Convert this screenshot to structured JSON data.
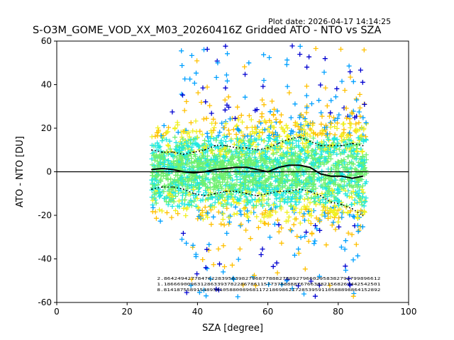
{
  "header": {
    "plot_date": "Plot date: 2026-04-17 14:14:25",
    "title": "S-O3M_GOME_VOD_XX_M03_20260416Z Gridded ATO - NTO vs SZA"
  },
  "chart_data": {
    "type": "scatter",
    "title": "S-O3M_GOME_VOD_XX_M03_20260416Z Gridded ATO - NTO vs SZA",
    "xlabel": "SZA [degree]",
    "ylabel": "ATO - NTO [DU]",
    "xlim": [
      0,
      100
    ],
    "ylim": [
      -60,
      60
    ],
    "xticks": [
      0,
      20,
      40,
      60,
      80,
      100
    ],
    "yticks": [
      -60,
      -40,
      -20,
      0,
      20,
      40,
      60
    ],
    "zero_line": 0,
    "marker": "+",
    "point_colors": [
      "#0000d0",
      "#00a0ff",
      "#20e8e0",
      "#70f070",
      "#f0f020",
      "#ffc000"
    ],
    "scatter_x_range": [
      27,
      88
    ],
    "median_series": {
      "name": "median",
      "x": [
        27,
        30,
        33,
        36,
        39,
        42,
        45,
        48,
        51,
        54,
        57,
        60,
        63,
        66,
        69,
        72,
        75,
        78,
        81,
        84,
        87
      ],
      "y": [
        1,
        1.5,
        1,
        0,
        -0.5,
        0,
        1,
        1.5,
        2,
        2,
        1,
        0,
        2,
        3,
        3,
        2,
        -1,
        -2,
        -2,
        -3,
        -2
      ]
    },
    "upper_series": {
      "name": "upper",
      "x": [
        27,
        30,
        33,
        36,
        39,
        42,
        45,
        48,
        51,
        54,
        57,
        60,
        63,
        66,
        69,
        72,
        75,
        78,
        81,
        84,
        87
      ],
      "y": [
        10,
        9,
        9,
        8,
        9,
        10,
        12,
        12,
        11,
        11,
        10,
        11,
        13,
        15,
        16,
        14,
        12,
        12,
        12,
        13,
        12
      ]
    },
    "lower_series": {
      "name": "lower",
      "x": [
        27,
        30,
        33,
        36,
        39,
        42,
        45,
        48,
        51,
        54,
        57,
        60,
        63,
        66,
        69,
        72,
        75,
        78,
        81,
        84,
        87
      ],
      "y": [
        -8,
        -7,
        -7,
        -8,
        -10,
        -11,
        -10,
        -9,
        -9,
        -10,
        -11,
        -10,
        -9,
        -9,
        -8,
        -9,
        -11,
        -14,
        -15,
        -17,
        -20
      ]
    },
    "counts_rows": [
      "2.8642494277847622839583982796877888278892796602958382792799896612",
      "1.18666900963128633937822867861157737888887676638821568267442542501",
      "8.814187558915489391058800896811721869862172853959110588898864152892"
    ]
  }
}
